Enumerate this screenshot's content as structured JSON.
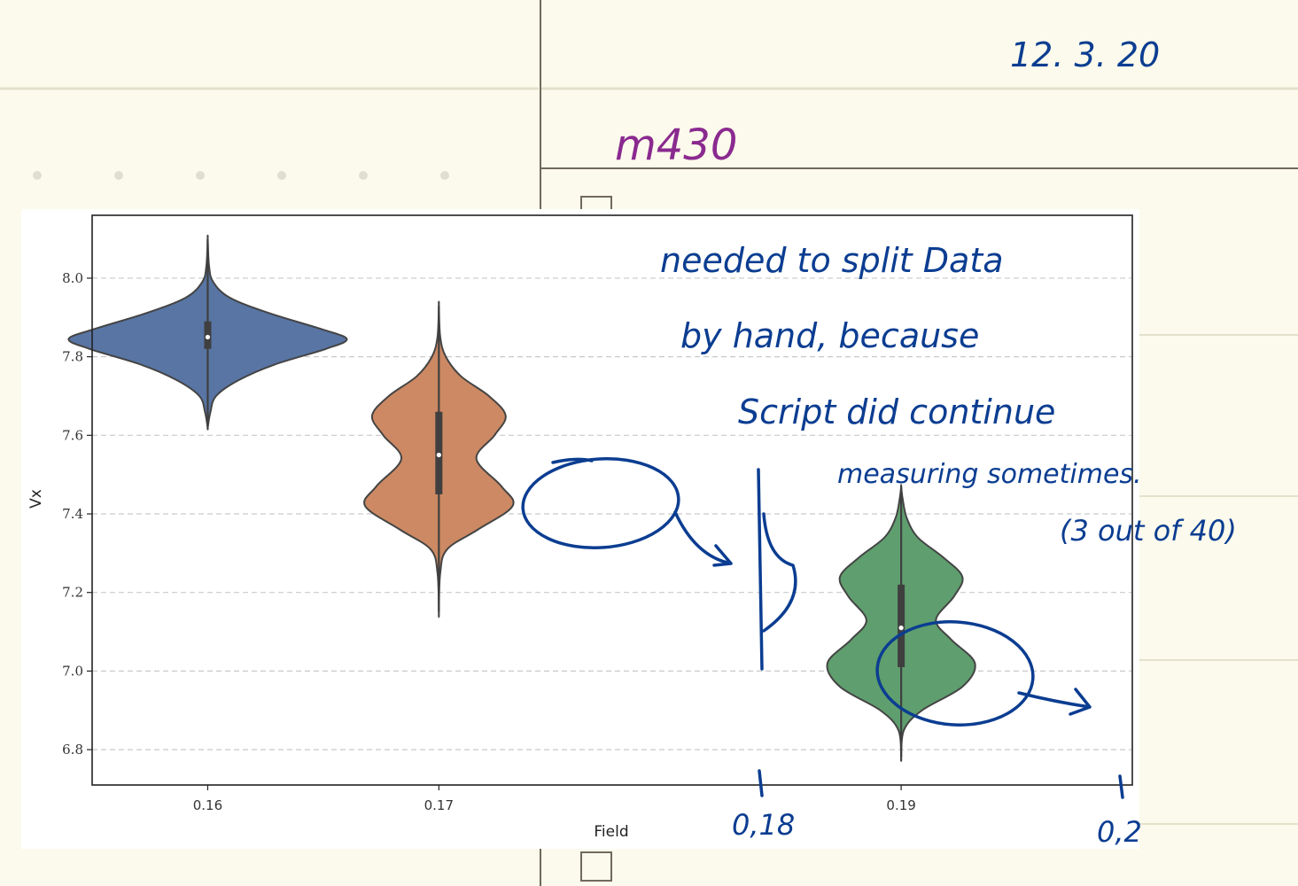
{
  "notes": {
    "date": "12. 3. 20",
    "heading": "m430",
    "line1": "needed to split Data",
    "line2": "by hand, because",
    "line3": "Script did continue",
    "line4": "measuring sometimes.",
    "line5": "(3 out of 40)",
    "extra_tick_a": "0,18",
    "extra_tick_b": "0,2"
  },
  "colors": {
    "page": "#fcfaec",
    "ink_blue": "#0b3d91",
    "ink_purple": "#8a2a8f"
  },
  "chart_data": {
    "type": "violin",
    "xlabel": "Field",
    "ylabel": "Vx",
    "categories": [
      "0.16",
      "0.17",
      "0.19"
    ],
    "ylim": [
      6.71,
      8.16
    ],
    "yticks": [
      "6.8",
      "7.0",
      "7.2",
      "7.4",
      "7.6",
      "7.8",
      "8.0"
    ],
    "grid": "horizontal dashed",
    "series": [
      {
        "category": "0.16",
        "color": "#5875a4",
        "min": 7.62,
        "max": 8.1,
        "q1": 7.82,
        "median": 7.85,
        "q3": 7.89,
        "profile": [
          [
            7.62,
            0.0
          ],
          [
            7.66,
            0.02
          ],
          [
            7.7,
            0.06
          ],
          [
            7.74,
            0.22
          ],
          [
            7.78,
            0.48
          ],
          [
            7.82,
            0.85
          ],
          [
            7.845,
            1.0
          ],
          [
            7.87,
            0.82
          ],
          [
            7.91,
            0.45
          ],
          [
            7.95,
            0.16
          ],
          [
            7.99,
            0.04
          ],
          [
            8.03,
            0.01
          ],
          [
            8.1,
            0.0
          ]
        ]
      },
      {
        "category": "0.17",
        "color": "#cc8963",
        "min": 7.15,
        "max": 7.93,
        "q1": 7.45,
        "median": 7.55,
        "q3": 7.66,
        "profile": [
          [
            7.15,
            0.0
          ],
          [
            7.25,
            0.01
          ],
          [
            7.31,
            0.06
          ],
          [
            7.36,
            0.28
          ],
          [
            7.42,
            0.53
          ],
          [
            7.47,
            0.45
          ],
          [
            7.54,
            0.27
          ],
          [
            7.6,
            0.4
          ],
          [
            7.65,
            0.48
          ],
          [
            7.7,
            0.36
          ],
          [
            7.75,
            0.16
          ],
          [
            7.8,
            0.05
          ],
          [
            7.85,
            0.01
          ],
          [
            7.93,
            0.0
          ]
        ]
      },
      {
        "category": "0.19",
        "color": "#5f9e6e",
        "min": 6.78,
        "max": 7.47,
        "q1": 7.01,
        "median": 7.11,
        "q3": 7.22,
        "profile": [
          [
            6.78,
            0.0
          ],
          [
            6.85,
            0.02
          ],
          [
            6.9,
            0.15
          ],
          [
            6.96,
            0.44
          ],
          [
            7.02,
            0.53
          ],
          [
            7.08,
            0.36
          ],
          [
            7.13,
            0.25
          ],
          [
            7.19,
            0.38
          ],
          [
            7.24,
            0.44
          ],
          [
            7.29,
            0.3
          ],
          [
            7.34,
            0.12
          ],
          [
            7.39,
            0.04
          ],
          [
            7.44,
            0.01
          ],
          [
            7.47,
            0.0
          ]
        ]
      }
    ]
  }
}
